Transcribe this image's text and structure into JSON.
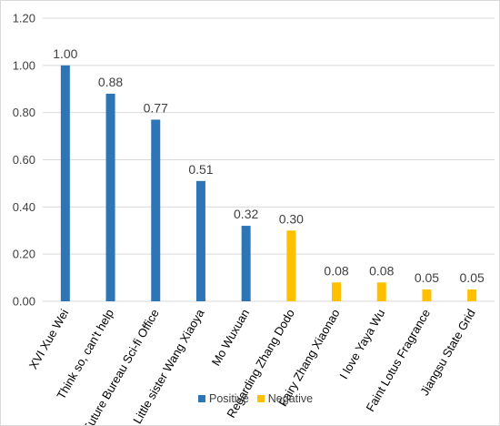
{
  "chart_data": {
    "type": "bar",
    "title": "",
    "xlabel": "",
    "ylabel": "",
    "ylim": [
      0,
      1.2
    ],
    "yticks": [
      "0.00",
      "0.20",
      "0.40",
      "0.60",
      "0.80",
      "1.00",
      "1.20"
    ],
    "grid": true,
    "legend_position": "bottom",
    "categories": [
      "XVI Xue Wei",
      "Think so, can't help",
      "Future Bureau Sci-fi Office",
      "Little sister Wang Xiaoya",
      "Mo Wuxuan",
      "Regarding Zhang Dodo",
      "Fairy Zhang Xiaonao",
      "I love Yaya Wu",
      "Faint Lotus Fragrance",
      "Jiangsu State Grid"
    ],
    "series": [
      {
        "name": "Positive",
        "color": "#2e75b6",
        "values": [
          1.0,
          0.88,
          0.77,
          0.51,
          0.32,
          null,
          null,
          null,
          null,
          null
        ]
      },
      {
        "name": "Negative",
        "color": "#ffc000",
        "values": [
          null,
          null,
          null,
          null,
          null,
          0.3,
          0.08,
          0.08,
          0.05,
          0.05
        ]
      }
    ],
    "data_labels": [
      "1.00",
      "0.88",
      "0.77",
      "0.51",
      "0.32",
      "0.30",
      "0.08",
      "0.08",
      "0.05",
      "0.05"
    ]
  },
  "colors": {
    "grid": "#d9d9d9",
    "axis": "#d9d9d9"
  }
}
